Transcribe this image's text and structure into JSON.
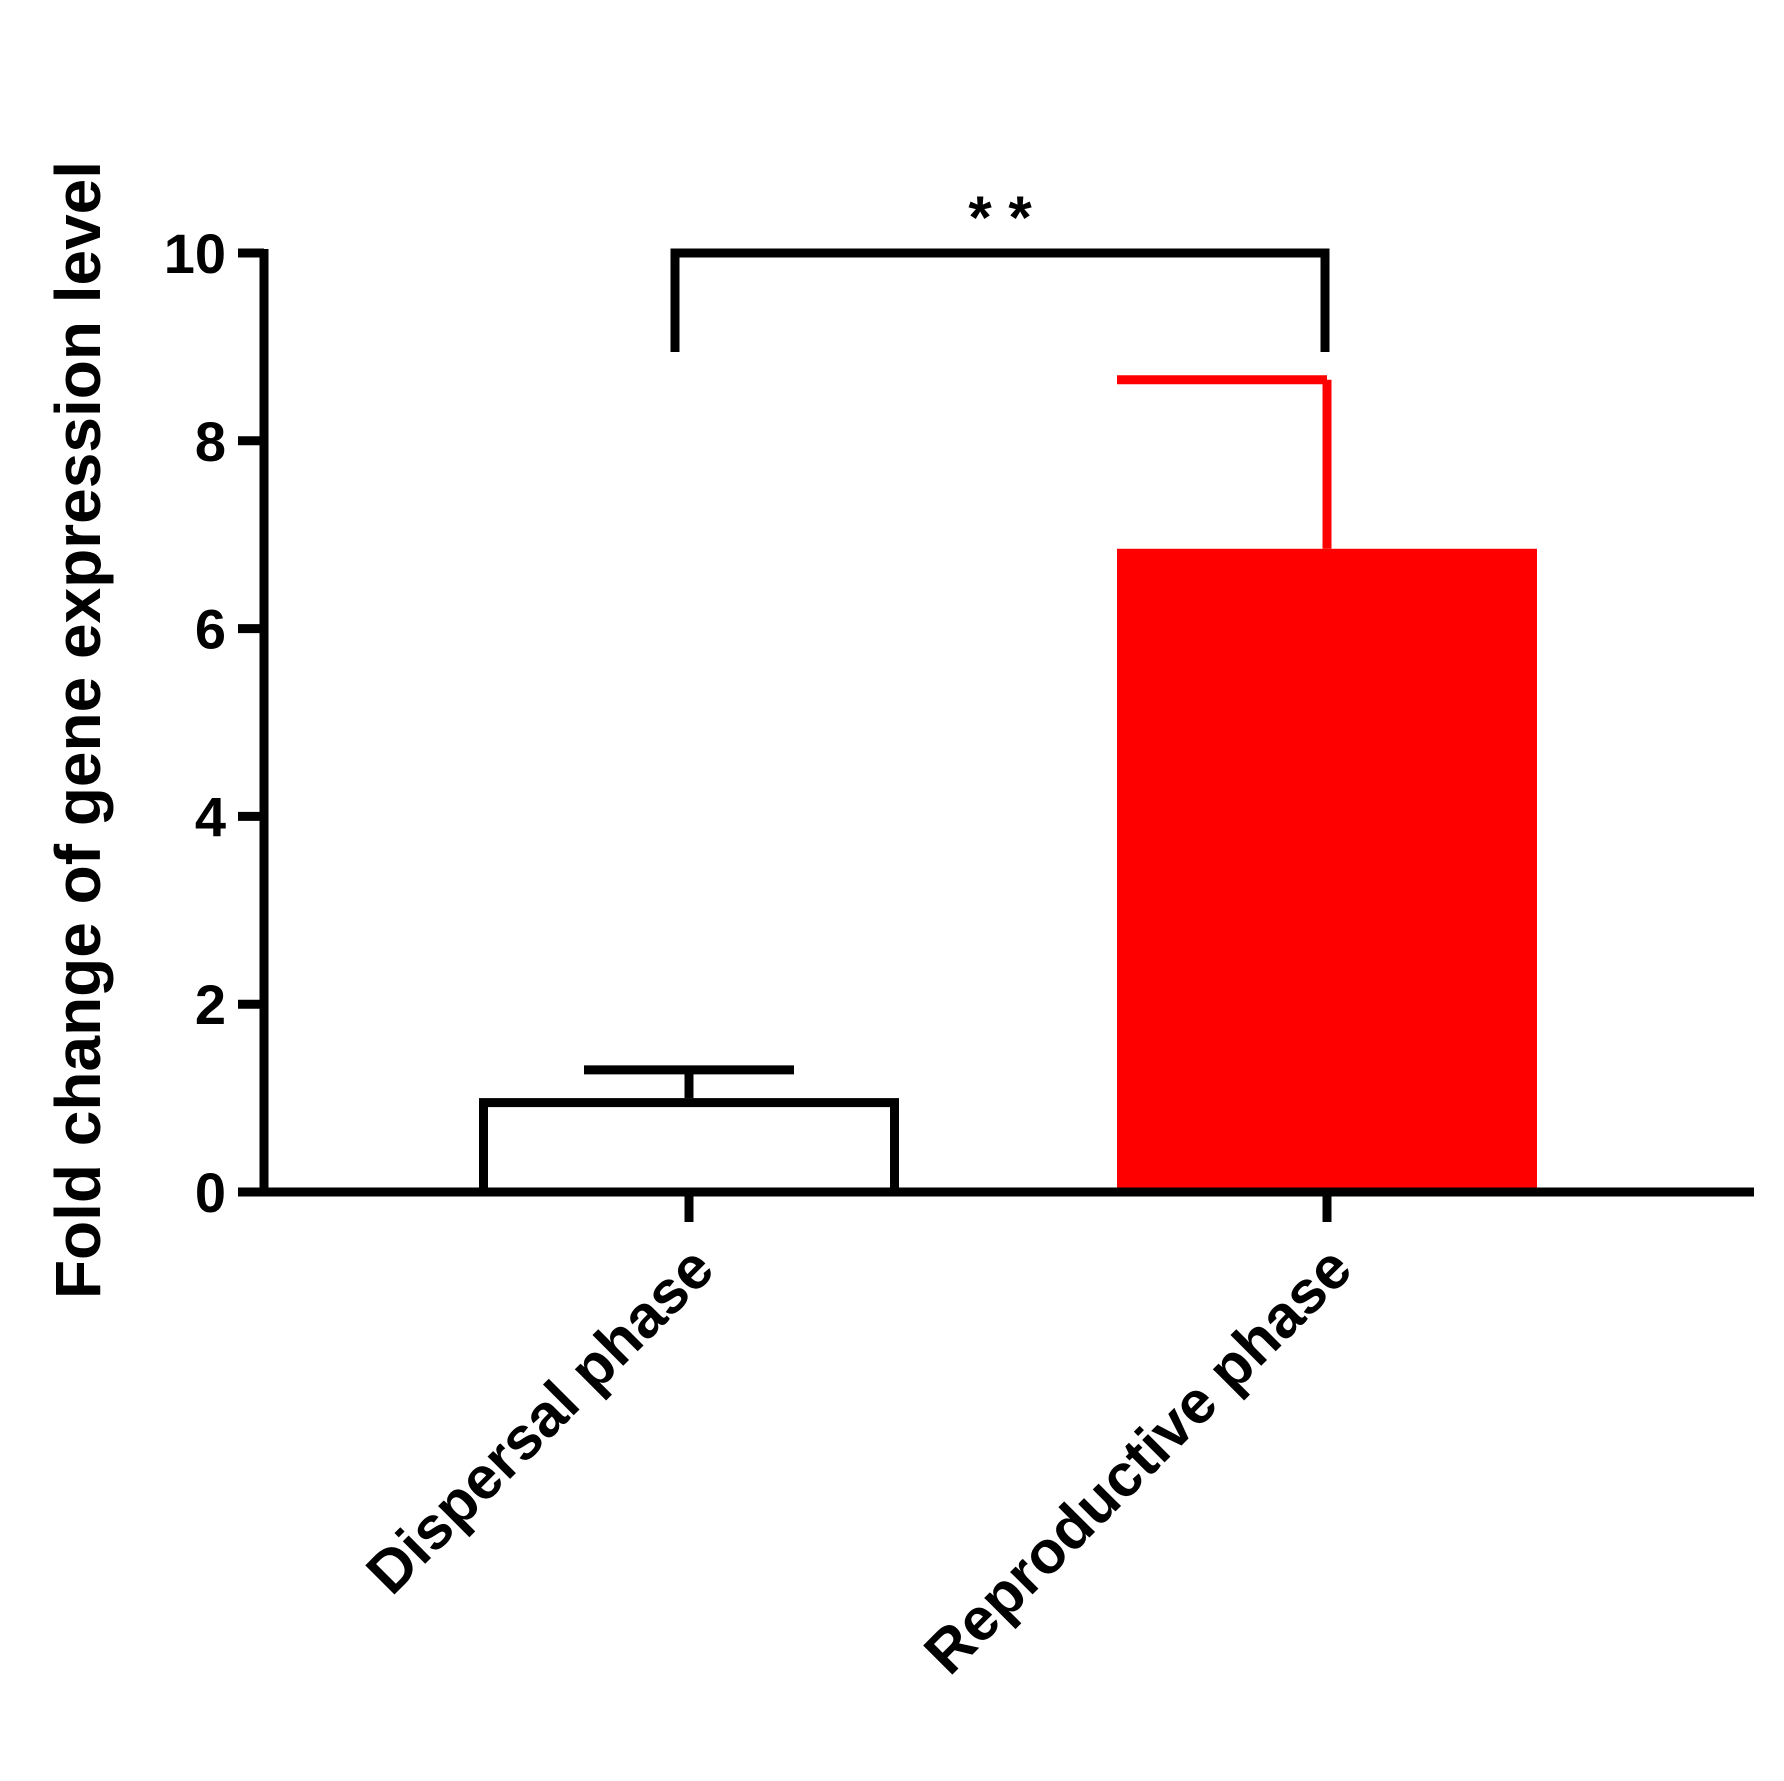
{
  "chart_data": {
    "type": "bar",
    "y_label": "Fold change of gene expression level",
    "categories": [
      "Dispersal phase",
      "Reproductive phase"
    ],
    "values": [
      1.0,
      6.85
    ],
    "errors": [
      0.3,
      1.8
    ],
    "colors": [
      "#ffffff",
      "#ff0000"
    ],
    "edge_colors": [
      "#000000",
      "#ff0000"
    ],
    "ylim": [
      0,
      10
    ],
    "yticks": [
      0,
      2,
      4,
      6,
      8,
      10
    ],
    "annotation": "* *"
  }
}
